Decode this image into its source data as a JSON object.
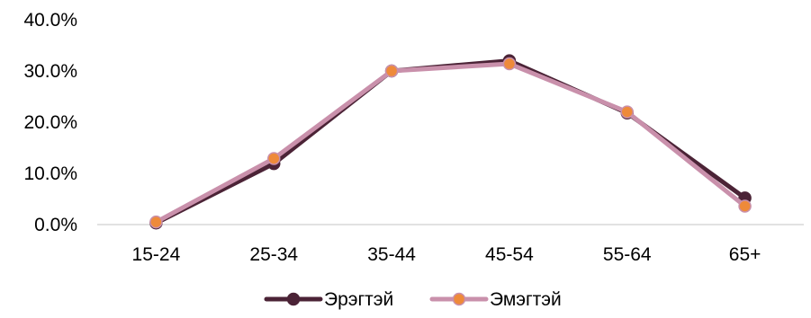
{
  "chart_data": {
    "type": "line",
    "title": "",
    "xlabel": "",
    "ylabel": "",
    "categories": [
      "15-24",
      "25-34",
      "35-44",
      "45-54",
      "55-64",
      "65+"
    ],
    "ylim": [
      0,
      40
    ],
    "y_ticks": [
      0,
      10,
      20,
      30,
      40
    ],
    "y_tick_labels": [
      "0.0%",
      "10.0%",
      "20.0%",
      "30.0%",
      "40.0%"
    ],
    "grid": false,
    "legend_position": "bottom",
    "series": [
      {
        "name": "Эрэгтэй",
        "values": [
          0.3,
          11.9,
          30.0,
          32.0,
          21.8,
          5.2
        ],
        "line_color": "#4b2336",
        "marker_color": "#4b2336"
      },
      {
        "name": "Эмэгтэй",
        "values": [
          0.5,
          12.9,
          30.0,
          31.4,
          22.0,
          3.6
        ],
        "line_color": "#c990ab",
        "marker_color": "#ee8a3a"
      }
    ]
  }
}
